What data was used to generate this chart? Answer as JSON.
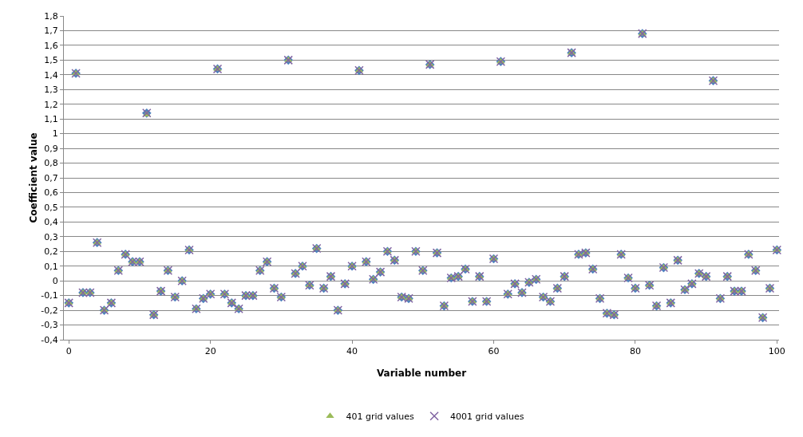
{
  "chart_data": {
    "type": "scatter",
    "xlabel": "Variable number",
    "ylabel": "Coefficient value",
    "x": [
      0,
      1,
      2,
      3,
      4,
      5,
      6,
      7,
      8,
      9,
      10,
      11,
      12,
      13,
      14,
      15,
      16,
      17,
      18,
      19,
      20,
      21,
      22,
      23,
      24,
      25,
      26,
      27,
      28,
      29,
      30,
      31,
      32,
      33,
      34,
      35,
      36,
      37,
      38,
      39,
      40,
      41,
      42,
      43,
      44,
      45,
      46,
      47,
      48,
      49,
      50,
      51,
      52,
      53,
      54,
      55,
      56,
      57,
      58,
      59,
      60,
      61,
      62,
      63,
      64,
      65,
      66,
      67,
      68,
      69,
      70,
      71,
      72,
      73,
      74,
      75,
      76,
      77,
      78,
      79,
      80,
      81,
      82,
      83,
      84,
      85,
      86,
      87,
      88,
      89,
      90,
      91,
      92,
      93,
      94,
      95,
      96,
      97,
      98,
      99,
      100
    ],
    "series": [
      {
        "color": "#4f81bd",
        "marker": "diamond",
        "values": [
          -0.15,
          1.41,
          -0.08,
          -0.08,
          0.26,
          -0.2,
          -0.15,
          0.07,
          0.18,
          0.13,
          0.13,
          1.14,
          -0.23,
          -0.07,
          0.07,
          -0.11,
          0.0,
          0.21,
          -0.19,
          -0.12,
          -0.09,
          1.44,
          -0.09,
          -0.15,
          -0.19,
          -0.1,
          -0.1,
          0.07,
          0.13,
          -0.05,
          -0.11,
          1.5,
          0.05,
          0.1,
          -0.03,
          0.22,
          -0.05,
          0.03,
          -0.2,
          -0.02,
          0.1,
          1.43,
          0.13,
          0.01,
          0.06,
          0.2,
          0.14,
          -0.11,
          -0.12,
          0.2,
          0.07,
          1.47,
          0.19,
          -0.17,
          0.02,
          0.03,
          0.08,
          -0.14,
          0.03,
          -0.14,
          0.15,
          1.49,
          -0.09,
          -0.02,
          -0.08,
          -0.01,
          0.01,
          -0.11,
          -0.14,
          -0.05,
          0.03,
          1.55,
          0.18,
          0.19,
          0.08,
          -0.12,
          -0.22,
          -0.23,
          0.18,
          0.02,
          -0.05,
          1.68,
          -0.03,
          -0.17,
          0.09,
          -0.15,
          0.14,
          -0.06,
          -0.02,
          0.05,
          0.03,
          1.36,
          -0.12,
          0.03,
          -0.07,
          -0.07,
          0.18,
          0.07,
          -0.25,
          -0.05,
          0.21
        ]
      },
      {
        "name": "401 grid values",
        "color": "#9bbb59",
        "marker": "triangle",
        "values": [
          -0.15,
          1.41,
          -0.08,
          -0.08,
          0.26,
          -0.2,
          -0.15,
          0.07,
          0.18,
          0.13,
          0.13,
          1.13,
          -0.23,
          -0.07,
          0.07,
          -0.11,
          0.0,
          0.21,
          -0.19,
          -0.12,
          -0.09,
          1.44,
          -0.09,
          -0.15,
          -0.19,
          -0.1,
          -0.1,
          0.07,
          0.13,
          -0.05,
          -0.11,
          1.5,
          0.05,
          0.1,
          -0.03,
          0.22,
          -0.05,
          0.03,
          -0.2,
          -0.02,
          0.1,
          1.43,
          0.13,
          0.01,
          0.06,
          0.2,
          0.14,
          -0.11,
          -0.12,
          0.2,
          0.07,
          1.47,
          0.19,
          -0.17,
          0.02,
          0.03,
          0.08,
          -0.14,
          0.03,
          -0.14,
          0.15,
          1.49,
          -0.09,
          -0.02,
          -0.08,
          -0.01,
          0.01,
          -0.11,
          -0.14,
          -0.05,
          0.03,
          1.55,
          0.18,
          0.19,
          0.08,
          -0.12,
          -0.22,
          -0.23,
          0.18,
          0.02,
          -0.05,
          1.68,
          -0.03,
          -0.17,
          0.09,
          -0.15,
          0.14,
          -0.06,
          -0.02,
          0.05,
          0.03,
          1.36,
          -0.12,
          0.03,
          -0.07,
          -0.07,
          0.18,
          0.07,
          -0.25,
          -0.05,
          0.21
        ]
      },
      {
        "name": "4001 grid values",
        "color": "#8064a2",
        "marker": "cross",
        "values": [
          -0.15,
          1.41,
          -0.08,
          -0.08,
          0.26,
          -0.2,
          -0.15,
          0.07,
          0.18,
          0.13,
          0.13,
          1.14,
          -0.23,
          -0.07,
          0.07,
          -0.11,
          0.0,
          0.21,
          -0.19,
          -0.12,
          -0.09,
          1.44,
          -0.09,
          -0.15,
          -0.19,
          -0.1,
          -0.1,
          0.07,
          0.13,
          -0.05,
          -0.11,
          1.5,
          0.05,
          0.1,
          -0.03,
          0.22,
          -0.05,
          0.03,
          -0.2,
          -0.02,
          0.1,
          1.43,
          0.13,
          0.01,
          0.06,
          0.2,
          0.14,
          -0.11,
          -0.12,
          0.2,
          0.07,
          1.47,
          0.19,
          -0.17,
          0.02,
          0.03,
          0.08,
          -0.14,
          0.03,
          -0.14,
          0.15,
          1.49,
          -0.09,
          -0.02,
          -0.08,
          -0.01,
          0.01,
          -0.11,
          -0.14,
          -0.05,
          0.03,
          1.55,
          0.18,
          0.19,
          0.08,
          -0.12,
          -0.22,
          -0.23,
          0.18,
          0.02,
          -0.05,
          1.68,
          -0.03,
          -0.17,
          0.09,
          -0.15,
          0.14,
          -0.06,
          -0.02,
          0.05,
          0.03,
          1.36,
          -0.12,
          0.03,
          -0.07,
          -0.07,
          0.18,
          0.07,
          -0.25,
          -0.05,
          0.21
        ]
      }
    ],
    "xlim": [
      -0.7,
      100.3
    ],
    "xticks": [
      0,
      20,
      40,
      60,
      80,
      100
    ],
    "ylim": [
      -0.4,
      1.8
    ],
    "yticks": [
      {
        "value": -0.4,
        "label": "-0,4"
      },
      {
        "value": -0.3,
        "label": "-0,3"
      },
      {
        "value": -0.2,
        "label": "-0,2"
      },
      {
        "value": -0.1,
        "label": "-0,1"
      },
      0,
      {
        "value": 0.1,
        "label": "0,1"
      },
      {
        "value": 0.2,
        "label": "0,2"
      },
      {
        "value": 0.3,
        "label": "0,3"
      },
      {
        "value": 0.4,
        "label": "0,4"
      },
      {
        "value": 0.5,
        "label": "0,5"
      },
      {
        "value": 0.6,
        "label": "0,6"
      },
      {
        "value": 0.7,
        "label": "0,7"
      },
      {
        "value": 0.8,
        "label": "0,8"
      },
      {
        "value": 0.9,
        "label": "0,9"
      },
      1,
      {
        "value": 1.1,
        "label": "1,1"
      },
      {
        "value": 1.2,
        "label": "1,2"
      },
      {
        "value": 1.3,
        "label": "1,3"
      },
      {
        "value": 1.4,
        "label": "1,4"
      },
      {
        "value": 1.5,
        "label": "1,5"
      },
      {
        "value": 1.6,
        "label": "1,6"
      },
      {
        "value": 1.7,
        "label": "1,7"
      },
      {
        "value": 1.8,
        "label": "1,8"
      }
    ],
    "grid": "y",
    "legend": "bottom"
  }
}
